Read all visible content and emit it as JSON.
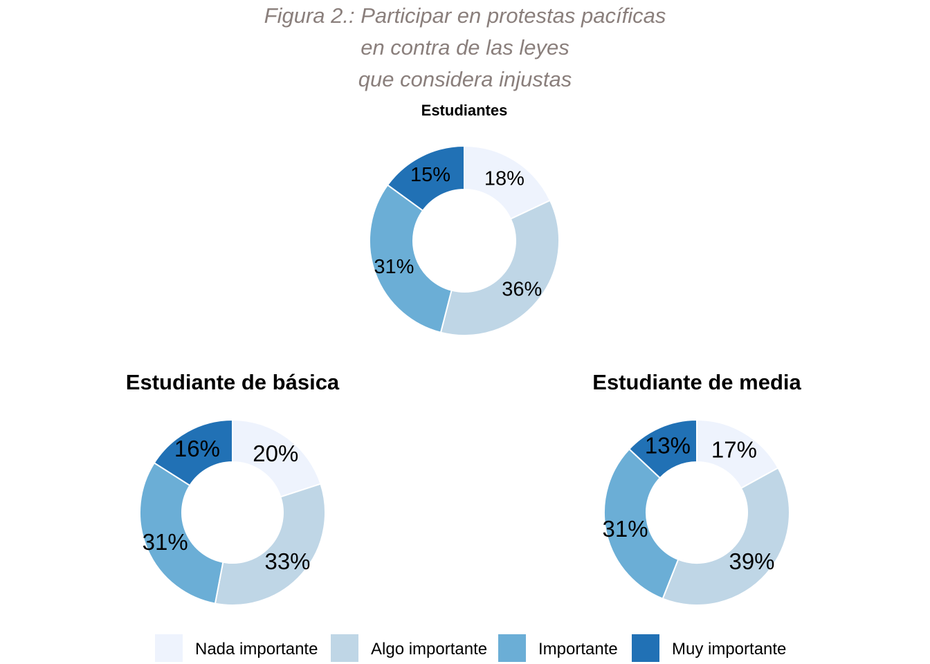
{
  "title": {
    "lines": [
      "Figura 2.: Participar en protestas pacíficas",
      "en contra de las leyes",
      "que considera injustas"
    ]
  },
  "legend": {
    "items": [
      {
        "label": "Nada importante",
        "color": "#eef3fd"
      },
      {
        "label": "Algo importante",
        "color": "#bfd6e6"
      },
      {
        "label": "Importante",
        "color": "#6baed6"
      },
      {
        "label": "Muy importante",
        "color": "#2171b5"
      }
    ]
  },
  "chart_data": [
    {
      "type": "pie",
      "title": "Estudiantes",
      "categories": [
        "Nada importante",
        "Algo importante",
        "Importante",
        "Muy importante"
      ],
      "values": [
        18,
        36,
        31,
        15
      ],
      "labels": [
        "18%",
        "36%",
        "31%",
        "15%"
      ]
    },
    {
      "type": "pie",
      "title": "Estudiante de básica",
      "categories": [
        "Nada importante",
        "Algo importante",
        "Importante",
        "Muy importante"
      ],
      "values": [
        20,
        33,
        31,
        16
      ],
      "labels": [
        "20%",
        "33%",
        "31%",
        "16%"
      ]
    },
    {
      "type": "pie",
      "title": "Estudiante de media",
      "categories": [
        "Nada importante",
        "Algo importante",
        "Importante",
        "Muy importante"
      ],
      "values": [
        17,
        39,
        31,
        13
      ],
      "labels": [
        "17%",
        "39%",
        "31%",
        "13%"
      ]
    }
  ]
}
